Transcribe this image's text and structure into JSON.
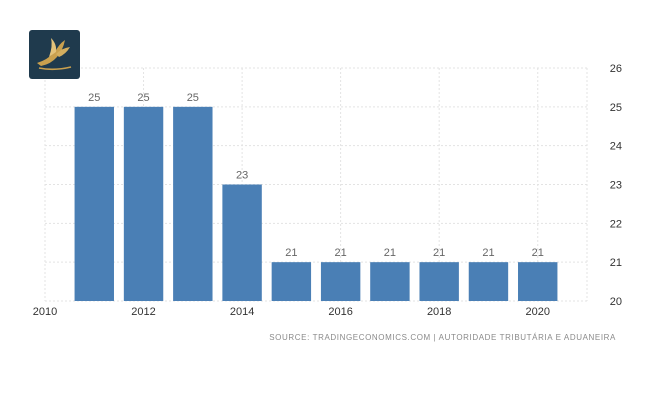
{
  "chart_data": {
    "type": "bar",
    "x": [
      2011,
      2012,
      2013,
      2014,
      2015,
      2016,
      2017,
      2018,
      2019,
      2020
    ],
    "values": [
      25,
      25,
      25,
      23,
      21,
      21,
      21,
      21,
      21,
      21
    ],
    "data_labels": [
      "25",
      "25",
      "25",
      "23",
      "21",
      "21",
      "21",
      "21",
      "21",
      "21"
    ],
    "x_ticks": [
      "2010",
      "2012",
      "2014",
      "2016",
      "2018",
      "2020"
    ],
    "y_ticks": [
      "20",
      "21",
      "22",
      "23",
      "24",
      "25",
      "26"
    ],
    "ylim": [
      20,
      26
    ],
    "xlim": [
      2010,
      2021
    ],
    "y_axis_side": "right",
    "grid": true,
    "bar_color": "#4a7fb5",
    "title": "",
    "xlabel": "",
    "ylabel": ""
  },
  "source": "SOURCE: TRADINGECONOMICS.COM | AUTORIDADE TRIBUTÁRIA E ADUANEIRA",
  "logo": {
    "icon": "bird-emblem-icon",
    "background": "#1f3a4d",
    "accent": "#c9a04e"
  }
}
